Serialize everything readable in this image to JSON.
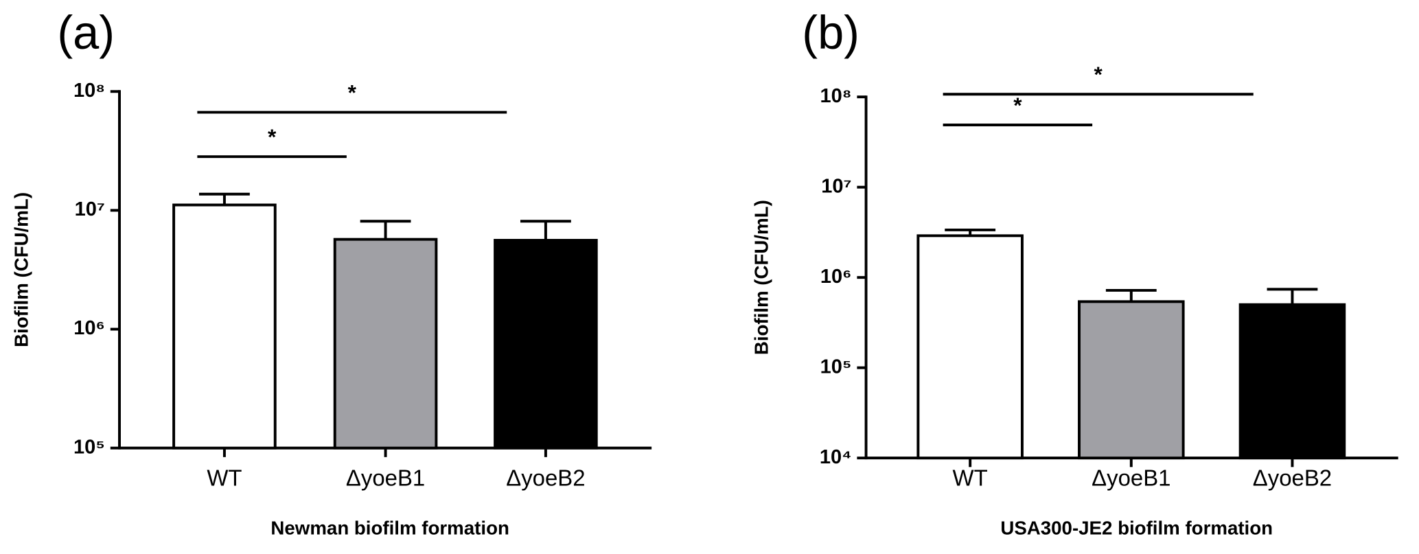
{
  "chart_data": [
    {
      "type": "bar",
      "panel_label": "(a)",
      "y_label": "Biofilm (CFU/mL)",
      "x_label": "Newman biofilm formation",
      "categories": [
        "WT",
        "ΔyoeB1",
        "ΔyoeB2"
      ],
      "values": [
        11100000,
        5700000,
        5600000
      ],
      "errors": [
        2600000,
        2400000,
        2500000
      ],
      "colors": [
        "#ffffff",
        "#a0a0a5",
        "#000000"
      ],
      "log_scale": true,
      "ylim": [
        100000,
        100000000
      ],
      "yticks": [
        {
          "value": 100000,
          "label": "10⁵"
        },
        {
          "value": 1000000,
          "label": "10⁶"
        },
        {
          "value": 10000000,
          "label": "10⁷"
        },
        {
          "value": 100000000,
          "label": "10⁸"
        }
      ],
      "significance": [
        {
          "from": 0,
          "to": 1,
          "label": "*"
        },
        {
          "from": 0,
          "to": 2,
          "label": "*"
        }
      ]
    },
    {
      "type": "bar",
      "panel_label": "(b)",
      "y_label": "Biofilm (CFU/mL)",
      "x_label": "USA300-JE2 biofilm formation",
      "categories": [
        "WT",
        "ΔyoeB1",
        "ΔyoeB2"
      ],
      "values": [
        2900000,
        540000,
        500000
      ],
      "errors": [
        460000,
        180000,
        240000
      ],
      "colors": [
        "#ffffff",
        "#a0a0a5",
        "#000000"
      ],
      "log_scale": true,
      "ylim": [
        10000,
        100000000
      ],
      "yticks": [
        {
          "value": 10000,
          "label": "10⁴"
        },
        {
          "value": 100000,
          "label": "10⁵"
        },
        {
          "value": 1000000,
          "label": "10⁶"
        },
        {
          "value": 10000000,
          "label": "10⁷"
        },
        {
          "value": 100000000,
          "label": "10⁸"
        }
      ],
      "significance": [
        {
          "from": 0,
          "to": 1,
          "label": "*"
        },
        {
          "from": 0,
          "to": 2,
          "label": "*"
        }
      ]
    }
  ]
}
